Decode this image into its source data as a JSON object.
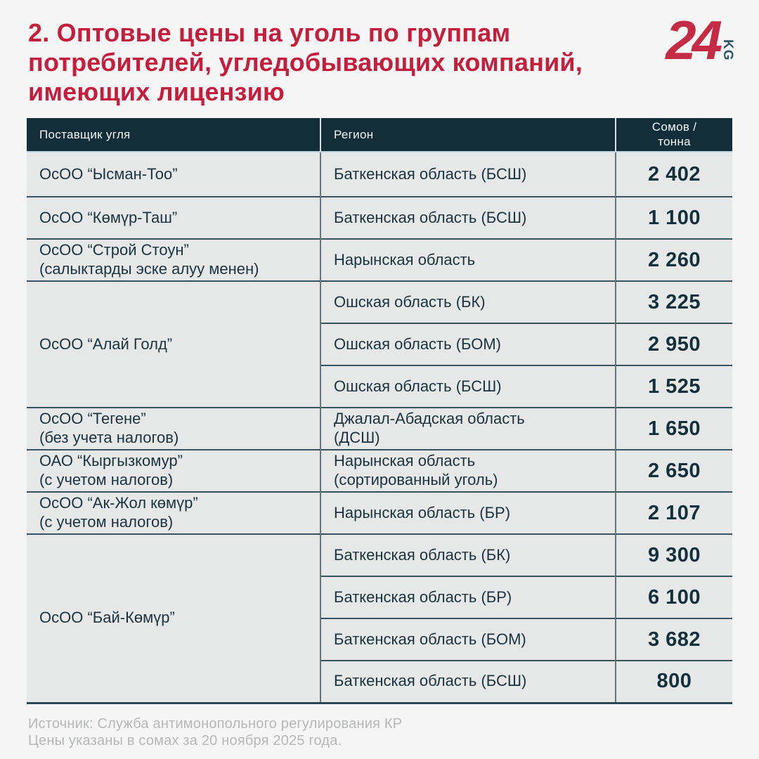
{
  "page": {
    "title": "2. Оптовые цены на уголь по группам потребителей, угледобывающих компаний, имеющих лицензию",
    "colors": {
      "accent_red": "#c41e3d",
      "header_bg": "#132e38",
      "row_bg": "#e6e8e8",
      "page_bg": "#f5f5f5",
      "body_text": "#1b333e",
      "footer_text": "#b5b7b9"
    }
  },
  "logo": {
    "number": "24",
    "suffix": "KG"
  },
  "table": {
    "headers": {
      "supplier": "Поставщик угля",
      "region": "Регион",
      "price": "Сомов /\nтонна"
    },
    "groups": [
      {
        "supplier": "ОсОО “Ысман-Тоо”",
        "rows": [
          {
            "region": "Баткенская область (БСШ)",
            "price": "2 402"
          }
        ]
      },
      {
        "supplier": "ОсОО “Көмүр-Таш”",
        "rows": [
          {
            "region": "Баткенская область (БСШ)",
            "price": "1 100"
          }
        ]
      },
      {
        "supplier": "ОсОО “Строй Стоун”\n(салыктарды эске алуу менен)",
        "rows": [
          {
            "region": "Нарынская область",
            "price": "2 260"
          }
        ]
      },
      {
        "supplier": "ОсОО “Алай Голд”",
        "rows": [
          {
            "region": "Ошская область (БК)",
            "price": "3 225"
          },
          {
            "region": "Ошская область (БОМ)",
            "price": "2 950"
          },
          {
            "region": "Ошская область (БСШ)",
            "price": "1 525"
          }
        ]
      },
      {
        "supplier": "ОсОО “Тегене”\n(без учета налогов)",
        "rows": [
          {
            "region": "Джалал-Абадская область\n(ДСШ)",
            "price": "1 650"
          }
        ]
      },
      {
        "supplier": "ОАО “Кыргызкомур”\n(с учетом налогов)",
        "rows": [
          {
            "region": "Нарынская область\n(сортированный уголь)",
            "price": "2 650"
          }
        ]
      },
      {
        "supplier": "ОсОО “Ак-Жол көмүр”\n(с учетом налогов)",
        "rows": [
          {
            "region": "Нарынская область (БР)",
            "price": "2 107"
          }
        ]
      },
      {
        "supplier": "ОсОО “Бай-Көмүр”",
        "rows": [
          {
            "region": "Баткенская область (БК)",
            "price": "9 300"
          },
          {
            "region": "Баткенская область (БР)",
            "price": "6 100"
          },
          {
            "region": "Баткенская область (БОМ)",
            "price": "3 682"
          },
          {
            "region": "Баткенская область (БСШ)",
            "price": "800"
          }
        ]
      }
    ]
  },
  "footer": {
    "source": "Источник: Служба антимонопольного регулирования КР",
    "note": "Цены указаны в сомах за 20 ноября 2025 года."
  },
  "chart_data": {
    "type": "table",
    "title": "2. Оптовые цены на уголь по группам потребителей, угледобывающих компаний, имеющих лицензию",
    "columns": [
      "Поставщик угля",
      "Регион",
      "Сомов / тонна"
    ],
    "rows": [
      [
        "ОсОО “Ысман-Тоо”",
        "Баткенская область (БСШ)",
        2402
      ],
      [
        "ОсОО “Көмүр-Таш”",
        "Баткенская область (БСШ)",
        1100
      ],
      [
        "ОсОО “Строй Стоун” (салыктарды эске алуу менен)",
        "Нарынская область",
        2260
      ],
      [
        "ОсОО “Алай Голд”",
        "Ошская область (БК)",
        3225
      ],
      [
        "ОсОО “Алай Голд”",
        "Ошская область (БОМ)",
        2950
      ],
      [
        "ОсОО “Алай Голд”",
        "Ошская область (БСШ)",
        1525
      ],
      [
        "ОсОО “Тегене” (без учета налогов)",
        "Джалал-Абадская область (ДСШ)",
        1650
      ],
      [
        "ОАО “Кыргызкомур” (с учетом налогов)",
        "Нарынская область (сортированный уголь)",
        2650
      ],
      [
        "ОсОО “Ак-Жол көмүр” (с учетом налогов)",
        "Нарынская область (БР)",
        2107
      ],
      [
        "ОсОО “Бай-Көмүр”",
        "Баткенская область (БК)",
        9300
      ],
      [
        "ОсОО “Бай-Көмүр”",
        "Баткенская область (БР)",
        6100
      ],
      [
        "ОсОО “Бай-Көмүр”",
        "Баткенская область (БОМ)",
        3682
      ],
      [
        "ОсОО “Бай-Көмүр”",
        "Баткенская область (БСШ)",
        800
      ]
    ],
    "source": "Источник: Служба антимонопольного регулирования КР",
    "note": "Цены указаны в сомах за 20 ноября 2025 года.",
    "units": "сом/тонна"
  }
}
